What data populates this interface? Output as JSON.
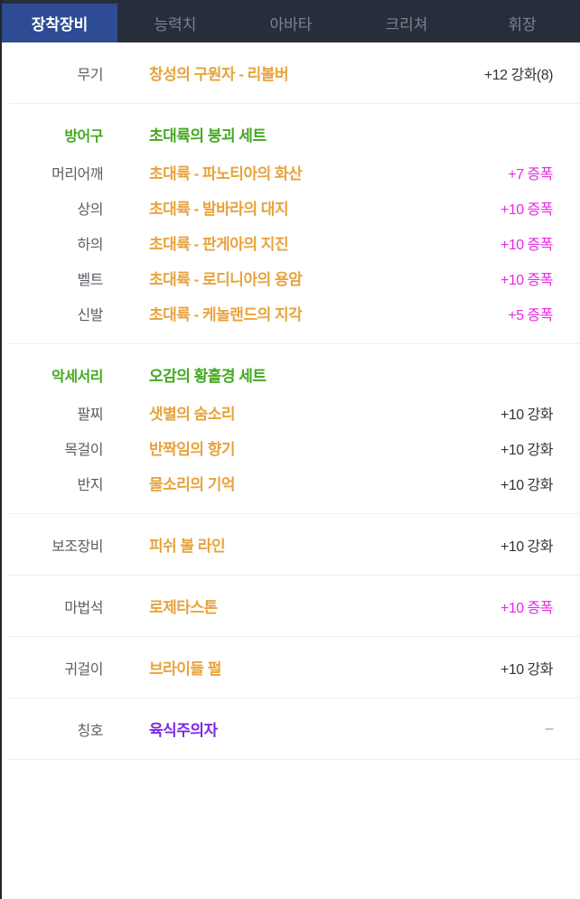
{
  "colors": {
    "tabbar_bg": "#272d3b",
    "tab_active_bg": "#2e4c94",
    "tab_active_text": "#ffffff",
    "tab_inactive_text": "#7c828e",
    "item_orange": "#e8a33c",
    "set_green": "#45a821",
    "amplify_magenta": "#e52be5",
    "title_purple": "#7a2be2",
    "reinforce_dark": "#33353a",
    "slot_gray": "#5b5e64",
    "dash_gray": "#8b8f96",
    "divider": "#ebedf0"
  },
  "tabs": [
    {
      "label": "장착장비",
      "active": true
    },
    {
      "label": "능력치",
      "active": false
    },
    {
      "label": "아바타",
      "active": false
    },
    {
      "label": "크리쳐",
      "active": false
    },
    {
      "label": "휘장",
      "active": false
    }
  ],
  "sections": [
    {
      "id": "weapon",
      "kind": "single",
      "rows": [
        {
          "slot": "무기",
          "name": "창성의 구원자 - 리볼버",
          "name_color": "#e8a33c",
          "value": "+12 강화(8)",
          "value_color": "#33353a"
        }
      ]
    },
    {
      "id": "armor",
      "kind": "grouped",
      "header": {
        "slot": "방어구",
        "set_name": "초대륙의 붕괴 세트",
        "color": "#45a821"
      },
      "rows": [
        {
          "slot": "머리어깨",
          "name": "초대륙 - 파노티아의 화산",
          "name_color": "#e8a33c",
          "value": "+7 증폭",
          "value_color": "#e52be5"
        },
        {
          "slot": "상의",
          "name": "초대륙 - 발바라의 대지",
          "name_color": "#e8a33c",
          "value": "+10 증폭",
          "value_color": "#e52be5"
        },
        {
          "slot": "하의",
          "name": "초대륙 - 판게아의 지진",
          "name_color": "#e8a33c",
          "value": "+10 증폭",
          "value_color": "#e52be5"
        },
        {
          "slot": "벨트",
          "name": "초대륙 - 로디니아의 용암",
          "name_color": "#e8a33c",
          "value": "+10 증폭",
          "value_color": "#e52be5"
        },
        {
          "slot": "신발",
          "name": "초대륙 - 케놀랜드의 지각",
          "name_color": "#e8a33c",
          "value": "+5 증폭",
          "value_color": "#e52be5"
        }
      ]
    },
    {
      "id": "accessory",
      "kind": "grouped",
      "header": {
        "slot": "악세서리",
        "set_name": "오감의 황홀경 세트",
        "color": "#45a821"
      },
      "rows": [
        {
          "slot": "팔찌",
          "name": "샛별의 숨소리",
          "name_color": "#e8a33c",
          "value": "+10 강화",
          "value_color": "#33353a"
        },
        {
          "slot": "목걸이",
          "name": "반짝임의 향기",
          "name_color": "#e8a33c",
          "value": "+10 강화",
          "value_color": "#33353a"
        },
        {
          "slot": "반지",
          "name": "물소리의 기억",
          "name_color": "#e8a33c",
          "value": "+10 강화",
          "value_color": "#33353a"
        }
      ]
    },
    {
      "id": "sub-equipment",
      "kind": "single",
      "rows": [
        {
          "slot": "보조장비",
          "name": "피쉬 볼 라인",
          "name_color": "#e8a33c",
          "value": "+10 강화",
          "value_color": "#33353a"
        }
      ]
    },
    {
      "id": "magic-stone",
      "kind": "single",
      "rows": [
        {
          "slot": "마법석",
          "name": "로제타스톤",
          "name_color": "#e8a33c",
          "value": "+10 증폭",
          "value_color": "#e52be5"
        }
      ]
    },
    {
      "id": "earring",
      "kind": "single",
      "rows": [
        {
          "slot": "귀걸이",
          "name": "브라이들 펄",
          "name_color": "#e8a33c",
          "value": "+10 강화",
          "value_color": "#33353a"
        }
      ]
    },
    {
      "id": "title",
      "kind": "single",
      "rows": [
        {
          "slot": "칭호",
          "name": "육식주의자",
          "name_color": "#7a2be2",
          "value": "–",
          "value_color": "#8b8f96"
        }
      ]
    }
  ]
}
